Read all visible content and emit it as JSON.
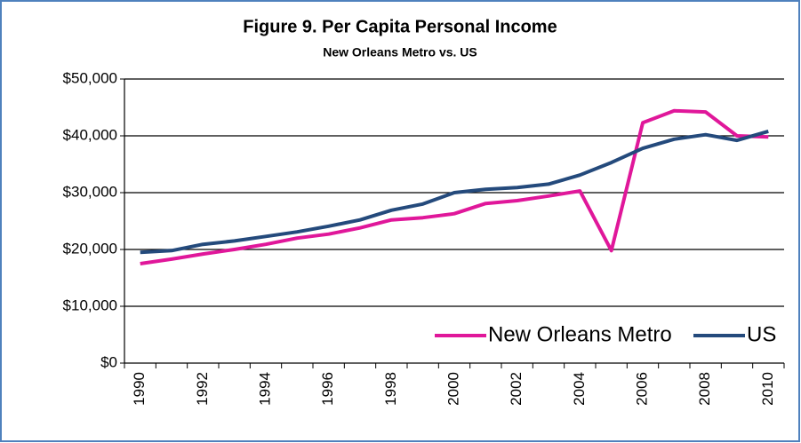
{
  "chart_data": {
    "type": "line",
    "title": "Figure 9. Per Capita Personal Income",
    "subtitle": "New Orleans Metro vs. US",
    "categories": [
      "1990",
      null,
      "1992",
      null,
      "1994",
      null,
      "1996",
      null,
      "1998",
      null,
      "2000",
      null,
      "2002",
      null,
      "2004",
      null,
      "2006",
      null,
      "2008",
      null,
      "2010"
    ],
    "series": [
      {
        "name": "New Orleans Metro",
        "color": "#e0179a",
        "values": [
          17500,
          18300,
          19200,
          20000,
          20900,
          22000,
          22700,
          23800,
          25200,
          25600,
          26300,
          28100,
          28600,
          29400,
          30300,
          19800,
          42300,
          44400,
          44200,
          40000,
          39800
        ]
      },
      {
        "name": "US",
        "color": "#244a7c",
        "values": [
          19500,
          19800,
          20900,
          21500,
          22300,
          23100,
          24100,
          25200,
          26900,
          28000,
          30000,
          30600,
          30900,
          31500,
          33100,
          35300,
          37800,
          39400,
          40200,
          39200,
          40800
        ]
      }
    ],
    "ylim": [
      0,
      50000
    ],
    "yticks": [
      {
        "value": 0,
        "label": "$0"
      },
      {
        "value": 10000,
        "label": "$10,000"
      },
      {
        "value": 20000,
        "label": "$20,000"
      },
      {
        "value": 30000,
        "label": "$30,000"
      },
      {
        "value": 40000,
        "label": "$40,000"
      },
      {
        "value": 50000,
        "label": "$50,000"
      }
    ],
    "grid": true,
    "legend": "lower right"
  }
}
